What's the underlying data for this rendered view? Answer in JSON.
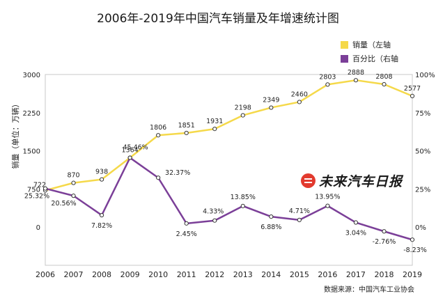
{
  "title": "2006年-2019年中国汽车销量及年增速统计图",
  "legend": [
    {
      "label": "销量（左轴",
      "color": "#f5d94a"
    },
    {
      "label": "百分比（右轴",
      "color": "#7b3f98"
    }
  ],
  "y_left_label": "销量（单位：万辆）",
  "watermark": "未来汽车日报",
  "source": "数据来源：中国汽车工业协会",
  "chart_data": {
    "type": "line",
    "x": [
      "2006",
      "2007",
      "2008",
      "2009",
      "2010",
      "2011",
      "2012",
      "2013",
      "2014",
      "2015",
      "2016",
      "2017",
      "2018",
      "2019"
    ],
    "series": [
      {
        "name": "销量（左轴",
        "axis": "left",
        "color": "#f5d94a",
        "values": [
          722,
          870,
          938,
          1364,
          1806,
          1851,
          1931,
          2198,
          2349,
          2460,
          2803,
          2888,
          2808,
          2577
        ],
        "labels": [
          "722",
          "870",
          "938",
          "1364",
          "1806",
          "1851",
          "1931",
          "2198",
          "2349",
          "2460",
          "2803",
          "2888",
          "2808",
          "2577"
        ]
      },
      {
        "name": "百分比（右轴",
        "axis": "right",
        "color": "#7b3f98",
        "values": [
          25.32,
          20.56,
          7.82,
          45.46,
          32.37,
          2.45,
          4.33,
          13.85,
          6.88,
          4.71,
          13.95,
          3.04,
          -2.76,
          -8.23
        ],
        "labels": [
          "25.32%",
          "20.56%",
          "7.82%",
          "45.46%",
          "32.37%",
          "2.45%",
          "4.33%",
          "13.85%",
          "6.88%",
          "4.71%",
          "13.95%",
          "3.04%",
          "-2.76%",
          "-8.23%"
        ]
      }
    ],
    "y_left": {
      "min": -750,
      "max": 3000,
      "ticks": [
        0,
        750,
        1500,
        2250,
        3000
      ],
      "tick_labels": [
        "0",
        "750",
        "1500",
        "2250",
        "3000"
      ]
    },
    "y_right": {
      "min": -25,
      "max": 100,
      "ticks": [
        0,
        25,
        50,
        75,
        100
      ],
      "tick_labels": [
        "0%",
        "25%",
        "50%",
        "75%",
        "100%"
      ]
    },
    "grid": false,
    "legend_position": "top-right"
  }
}
